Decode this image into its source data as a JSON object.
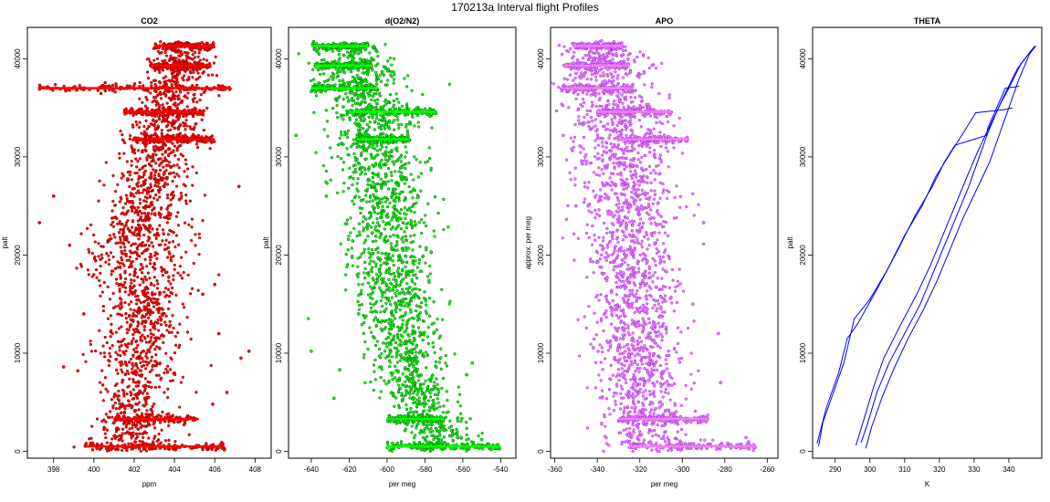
{
  "figure": {
    "title": "170213a   Interval flight Profiles"
  },
  "chart_data": [
    {
      "type": "scatter",
      "title": "CO2",
      "xlabel": "ppm",
      "ylabel": "palt",
      "xlim": [
        396.7,
        408.8
      ],
      "ylim": [
        -700,
        43200
      ],
      "xticks": [
        398,
        400,
        402,
        404,
        406,
        408
      ],
      "yticks": [
        0,
        10000,
        20000,
        30000,
        40000
      ],
      "colors": {
        "fill": "#ff0000",
        "edge": "#8b0000"
      },
      "profile": {
        "alt": [
          500,
          2000,
          4000,
          6000,
          8000,
          10000,
          12000,
          14000,
          16000,
          18000,
          20000,
          22000,
          24000,
          26000,
          28000,
          30000,
          32000,
          34000,
          36000,
          38000,
          40000,
          41500
        ],
        "center": [
          401.6,
          401.8,
          402.0,
          402.1,
          402.2,
          402.3,
          402.3,
          402.4,
          402.3,
          402.2,
          402.1,
          402.3,
          402.5,
          402.7,
          402.9,
          403.1,
          403.4,
          403.6,
          403.8,
          404.0,
          404.2,
          404.3
        ],
        "spread": [
          1.0,
          1.0,
          0.9,
          0.9,
          1.0,
          1.0,
          0.9,
          0.9,
          1.0,
          1.2,
          1.4,
          1.2,
          1.0,
          1.0,
          0.9,
          0.9,
          0.8,
          0.8,
          0.8,
          0.8,
          0.7,
          0.7
        ]
      },
      "levels": [
        {
          "alt": 41300,
          "xmin": 403.0,
          "xmax": 406.0
        },
        {
          "alt": 39300,
          "xmin": 402.8,
          "xmax": 405.8
        },
        {
          "alt": 37000,
          "xmin": 397.3,
          "xmax": 406.8
        },
        {
          "alt": 34600,
          "xmin": 401.5,
          "xmax": 405.5
        },
        {
          "alt": 31800,
          "xmin": 402.0,
          "xmax": 406.0
        },
        {
          "alt": 3300,
          "xmin": 401.0,
          "xmax": 405.2
        },
        {
          "alt": 500,
          "xmin": 399.5,
          "xmax": 406.5
        }
      ],
      "outliers": [
        [
          397.3,
          23300
        ],
        [
          398.8,
          21000
        ],
        [
          399.2,
          8200
        ],
        [
          398.5,
          8600
        ],
        [
          407.7,
          10200
        ],
        [
          407.3,
          9500
        ],
        [
          406.2,
          12000
        ],
        [
          406.6,
          6000
        ],
        [
          405.9,
          4800
        ],
        [
          407.2,
          27000
        ],
        [
          398.0,
          26000
        ],
        [
          399.5,
          14000
        ],
        [
          406.0,
          17000
        ],
        [
          405.4,
          16000
        ]
      ]
    },
    {
      "type": "scatter",
      "title": "d(O2/N2)",
      "xlabel": "per meg",
      "ylabel": "palt",
      "xlim": [
        -652,
        -532
      ],
      "ylim": [
        -700,
        43200
      ],
      "xticks": [
        -640,
        -620,
        -600,
        -580,
        -560,
        -540
      ],
      "yticks": [
        0,
        10000,
        20000,
        30000,
        40000
      ],
      "colors": {
        "fill": "#00ff00",
        "edge": "#006400"
      },
      "profile": {
        "alt": [
          500,
          2000,
          4000,
          6000,
          8000,
          10000,
          12000,
          14000,
          16000,
          18000,
          20000,
          22000,
          24000,
          26000,
          28000,
          30000,
          32000,
          34000,
          36000,
          38000,
          40000,
          41500
        ],
        "center": [
          -572,
          -575,
          -580,
          -585,
          -588,
          -590,
          -592,
          -594,
          -596,
          -597,
          -598,
          -598,
          -598,
          -600,
          -602,
          -605,
          -607,
          -610,
          -612,
          -615,
          -618,
          -620
        ],
        "spread": [
          9,
          9,
          9,
          10,
          10,
          10,
          10,
          10,
          10,
          10,
          11,
          11,
          11,
          11,
          11,
          11,
          11,
          11,
          11,
          11,
          10,
          10
        ]
      },
      "levels": [
        {
          "alt": 41300,
          "xmin": -640,
          "xmax": -610
        },
        {
          "alt": 39300,
          "xmin": -638,
          "xmax": -608
        },
        {
          "alt": 37000,
          "xmin": -640,
          "xmax": -605
        },
        {
          "alt": 34600,
          "xmin": -620,
          "xmax": -574
        },
        {
          "alt": 31800,
          "xmin": -616,
          "xmax": -588
        },
        {
          "alt": 3300,
          "xmin": -600,
          "xmax": -570
        },
        {
          "alt": 500,
          "xmin": -600,
          "xmax": -540
        }
      ],
      "outliers": [
        [
          -640,
          10200
        ],
        [
          -648,
          32200
        ],
        [
          -625,
          8300
        ],
        [
          -628,
          5400
        ],
        [
          -558,
          7800
        ],
        [
          -555,
          9000
        ],
        [
          -550,
          1200
        ],
        [
          -632,
          26000
        ],
        [
          -615,
          14000
        ]
      ]
    },
    {
      "type": "scatter",
      "title": "APO",
      "xlabel": "per meg",
      "ylabel": "approx. per meg",
      "xlim": [
        -362,
        -255
      ],
      "ylim": [
        -700,
        43200
      ],
      "xticks": [
        -360,
        -340,
        -320,
        -300,
        -280,
        -260
      ],
      "yticks": [
        0,
        10000,
        20000,
        30000,
        40000
      ],
      "colors": {
        "fill": "#ee82ee",
        "edge": "#a020f0"
      },
      "profile": {
        "alt": [
          500,
          2000,
          4000,
          6000,
          8000,
          10000,
          12000,
          14000,
          16000,
          18000,
          20000,
          22000,
          24000,
          26000,
          28000,
          30000,
          32000,
          34000,
          36000,
          38000,
          40000,
          41500
        ],
        "center": [
          -312,
          -314,
          -316,
          -318,
          -319,
          -320,
          -321,
          -322,
          -323,
          -324,
          -325,
          -325,
          -325,
          -326,
          -327,
          -328,
          -330,
          -332,
          -334,
          -336,
          -338,
          -340
        ],
        "spread": [
          10,
          10,
          10,
          10,
          10,
          10,
          10,
          10,
          10,
          10,
          11,
          11,
          11,
          11,
          11,
          11,
          11,
          11,
          11,
          11,
          10,
          10
        ]
      },
      "levels": [
        {
          "alt": 41300,
          "xmin": -352,
          "xmax": -328
        },
        {
          "alt": 39300,
          "xmin": -356,
          "xmax": -325
        },
        {
          "alt": 37000,
          "xmin": -357,
          "xmax": -323
        },
        {
          "alt": 34600,
          "xmin": -340,
          "xmax": -305
        },
        {
          "alt": 31800,
          "xmin": -330,
          "xmax": -297
        },
        {
          "alt": 3300,
          "xmin": -330,
          "xmax": -288
        },
        {
          "alt": 500,
          "xmin": -325,
          "xmax": -265
        }
      ],
      "outliers": [
        [
          -356,
          32200
        ],
        [
          -350,
          38500
        ],
        [
          -290,
          23300
        ],
        [
          -283,
          12000
        ],
        [
          -282,
          7000
        ],
        [
          -270,
          1400
        ],
        [
          -350,
          25000
        ],
        [
          -295,
          15000
        ]
      ]
    },
    {
      "type": "line",
      "title": "THETA",
      "xlabel": "K",
      "ylabel": "palt",
      "xlim": [
        283.5,
        349.5
      ],
      "ylim": [
        -700,
        43200
      ],
      "xticks": [
        290,
        300,
        310,
        320,
        330,
        340
      ],
      "yticks": [
        0,
        10000,
        20000,
        30000,
        40000
      ],
      "colors": {
        "line": "#0000ff"
      },
      "series": [
        {
          "values": [
            [
              285.2,
              500
            ],
            [
              286.5,
              3000
            ],
            [
              289.5,
              6000
            ],
            [
              292.5,
              9000
            ],
            [
              294.5,
              12000
            ],
            [
              295.5,
              13500
            ],
            [
              300,
              15500
            ],
            [
              305,
              18500
            ],
            [
              310,
              22000
            ],
            [
              315,
              25000
            ],
            [
              319,
              28000
            ],
            [
              322.5,
              30000
            ],
            [
              327,
              32500
            ],
            [
              330.5,
              34500
            ],
            [
              338.5,
              34800
            ],
            [
              341,
              35000
            ]
          ]
        },
        {
          "values": [
            [
              284.8,
              800
            ],
            [
              287.5,
              4500
            ],
            [
              291,
              8000
            ],
            [
              293.5,
              11500
            ],
            [
              296.5,
              13000
            ],
            [
              302,
              16500
            ],
            [
              308,
              20500
            ],
            [
              313,
              24000
            ],
            [
              318,
              27000
            ],
            [
              321.5,
              29500
            ],
            [
              324.5,
              31200
            ],
            [
              330,
              31800
            ],
            [
              333.5,
              32200
            ],
            [
              334,
              33000
            ],
            [
              336.5,
              35000
            ],
            [
              339,
              37000
            ],
            [
              343,
              37200
            ]
          ]
        },
        {
          "values": [
            [
              297.5,
              900
            ],
            [
              299.5,
              3000
            ],
            [
              302,
              6000
            ],
            [
              305.5,
              9000
            ],
            [
              310,
              12000
            ],
            [
              314.5,
              15000
            ],
            [
              318,
              18000
            ],
            [
              321.5,
              21000
            ],
            [
              325,
              24000
            ],
            [
              328.5,
              27000
            ],
            [
              331.5,
              30000
            ],
            [
              334,
              32500
            ],
            [
              337,
              35000
            ],
            [
              340,
              37000
            ],
            [
              343.5,
              39500
            ],
            [
              347.5,
              41300
            ]
          ]
        },
        {
          "values": [
            [
              298.8,
              300
            ],
            [
              300.5,
              2500
            ],
            [
              303.5,
              5500
            ],
            [
              307,
              8500
            ],
            [
              311,
              11500
            ],
            [
              315.5,
              14500
            ],
            [
              319.5,
              17500
            ],
            [
              323,
              20500
            ],
            [
              326.5,
              23500
            ],
            [
              330.5,
              26500
            ],
            [
              334.5,
              29500
            ],
            [
              337.5,
              32500
            ],
            [
              340.5,
              35500
            ],
            [
              343,
              38000
            ],
            [
              346,
              40500
            ],
            [
              347.8,
              41300
            ]
          ]
        },
        {
          "values": [
            [
              296,
              600
            ],
            [
              298.5,
              3500
            ],
            [
              301,
              6500
            ],
            [
              304,
              9500
            ],
            [
              309,
              13000
            ],
            [
              313.5,
              16000
            ],
            [
              317.5,
              19000
            ],
            [
              321,
              22000
            ],
            [
              324.5,
              25000
            ],
            [
              328,
              28000
            ],
            [
              331,
              30500
            ],
            [
              335,
              33500
            ],
            [
              339,
              36500
            ],
            [
              342.5,
              39000
            ],
            [
              346.8,
              41000
            ]
          ]
        }
      ]
    }
  ]
}
